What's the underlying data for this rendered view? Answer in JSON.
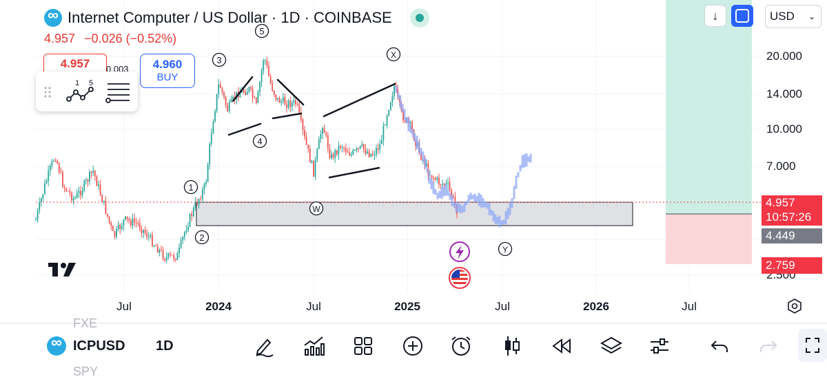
{
  "header": {
    "title": "Internet Computer / US Dollar · 1D · COINBASE",
    "last_price": "4.957",
    "change": "−0.026 (−0.52%)"
  },
  "trade": {
    "sell_price": "4.957",
    "spread": "0.003",
    "buy_price": "4.960",
    "buy_label": "BUY"
  },
  "tool_panel": {
    "wave_numbers": [
      "1",
      "5"
    ]
  },
  "top_right": {
    "currency": "USD"
  },
  "axis": {
    "y_ticks": [
      "20.000",
      "14.000",
      "10.000",
      "7.000",
      "2.500"
    ],
    "x_ticks": [
      {
        "label": "Jul",
        "bold": false
      },
      {
        "label": "2024",
        "bold": true
      },
      {
        "label": "Jul",
        "bold": false
      },
      {
        "label": "2025",
        "bold": true
      },
      {
        "label": "Jul",
        "bold": false
      },
      {
        "label": "2026",
        "bold": true
      },
      {
        "label": "Jul",
        "bold": false
      }
    ]
  },
  "price_tags": {
    "current": "4.957",
    "countdown": "10:57:26",
    "stop": "4.449",
    "target_low": "2.759"
  },
  "wave_labels": [
    "①",
    "②",
    "③",
    "④",
    "⑤",
    "Ⓦ",
    "Ⓧ",
    "Ⓨ"
  ],
  "bottom_bar": {
    "symbol": "ICPUSD",
    "timeframe": "1D",
    "ghost_top": "FXE",
    "ghost_bottom": "SPY"
  },
  "colors": {
    "up": "#26a69a",
    "down": "#ef5350",
    "accent": "#2962ff",
    "projection": "#8fa8f5",
    "target_zone": "#cdeee4",
    "stop_zone": "#fad6d9",
    "support_box": "#e0e1e5"
  }
}
